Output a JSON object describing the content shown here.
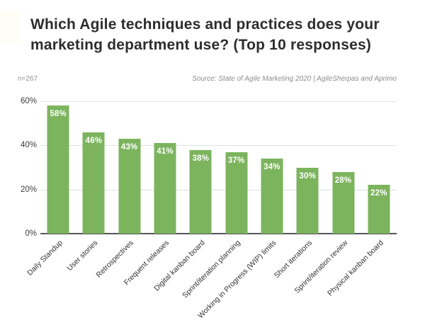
{
  "header": {
    "title_lines": [
      "Which Agile techniques and practices does your",
      "marketing department use? (Top 10 responses)"
    ]
  },
  "meta": {
    "sample_size": "n=267",
    "source": "Source: State of Agile Marketing 2020 | AgileSherpas and Aprimo"
  },
  "colors": {
    "bar": "#7cb45e",
    "gridline": "#dbe2e3",
    "axis_line": "#55565a",
    "value_label": "#ffffff",
    "title_text": "#2d2d2d",
    "meta_text": "#929292"
  },
  "chart_data": {
    "type": "bar",
    "title": "Which Agile techniques and practices does your marketing department use? (Top 10 responses)",
    "categories": [
      "Daily Standup",
      "User stories",
      "Retrospectives",
      "Frequent releases",
      "Digital kanban board",
      "Sprint/iteration planning",
      "Working in Progress (WIP) limits",
      "Short iterations",
      "Sprint/iteration review",
      "Physical kanban board"
    ],
    "values": [
      58,
      46,
      43,
      41,
      38,
      37,
      34,
      30,
      28,
      22
    ],
    "value_labels": [
      "58%",
      "46%",
      "43%",
      "41%",
      "38%",
      "37%",
      "34%",
      "30%",
      "28%",
      "22%"
    ],
    "xlabel": "",
    "ylabel": "",
    "ylim": [
      0,
      60
    ],
    "yticks": [
      0,
      20,
      40,
      60
    ],
    "ytick_labels": [
      "0%",
      "20%",
      "40%",
      "60%"
    ],
    "grid": true,
    "legend": false,
    "bar_label_position": "inside-top",
    "x_label_rotation_deg": -45
  }
}
